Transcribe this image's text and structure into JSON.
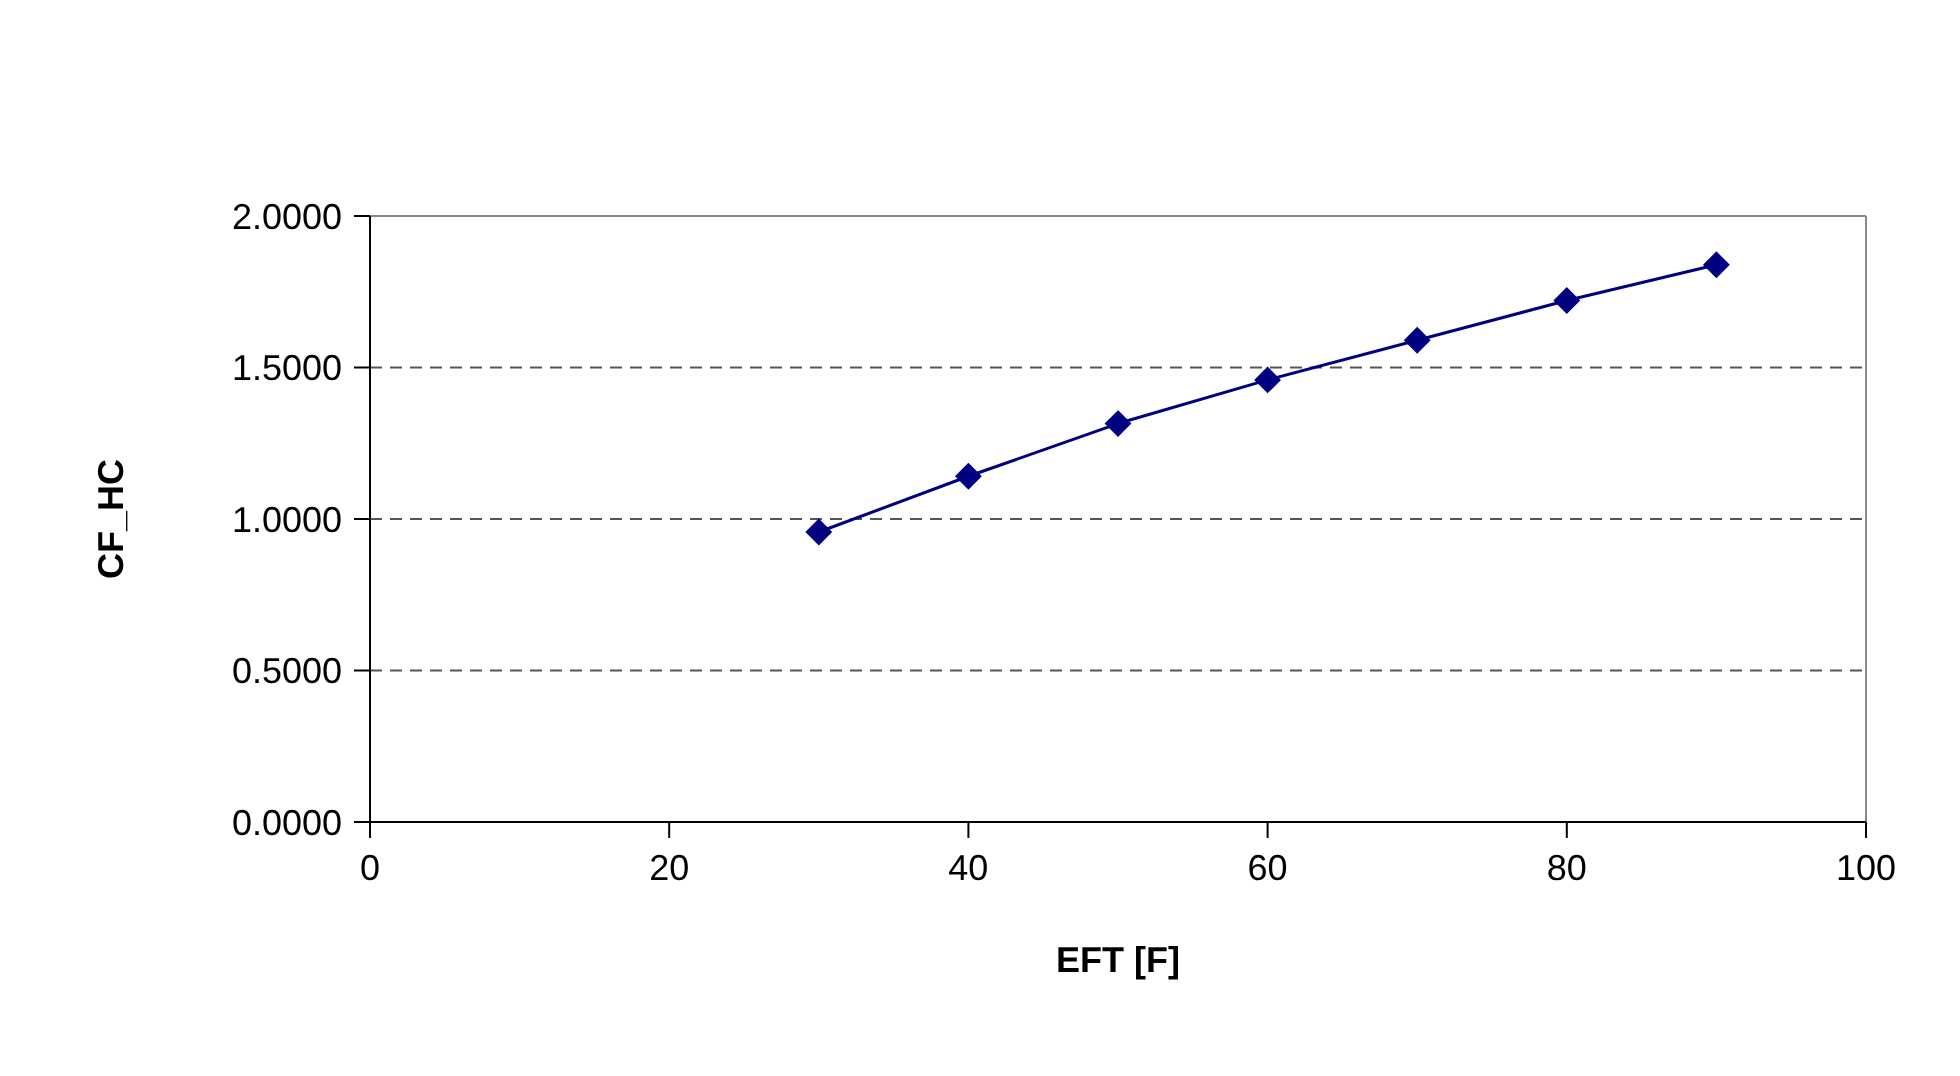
{
  "chart_data": {
    "type": "line",
    "xlabel": "EFT [F]",
    "ylabel": "CF_HC",
    "x": [
      30,
      40,
      50,
      60,
      70,
      80,
      90
    ],
    "series": [
      {
        "color": "#000080",
        "values": [
          0.957,
          1.141,
          1.315,
          1.459,
          1.59,
          1.721,
          1.839
        ]
      }
    ],
    "xlim": [
      0,
      100
    ],
    "xticks": [
      0,
      20,
      40,
      60,
      80,
      100
    ],
    "ylim": [
      0,
      2
    ],
    "yticks": [
      {
        "value": 0,
        "label": "0.0000"
      },
      {
        "value": 0.5,
        "label": "0.5000"
      },
      {
        "value": 1,
        "label": "1.0000"
      },
      {
        "value": 1.5,
        "label": "1.5000"
      },
      {
        "value": 2,
        "label": "2.0000"
      }
    ],
    "grid": "y",
    "legend": false,
    "marker": "diamond",
    "line_style": "solid"
  }
}
